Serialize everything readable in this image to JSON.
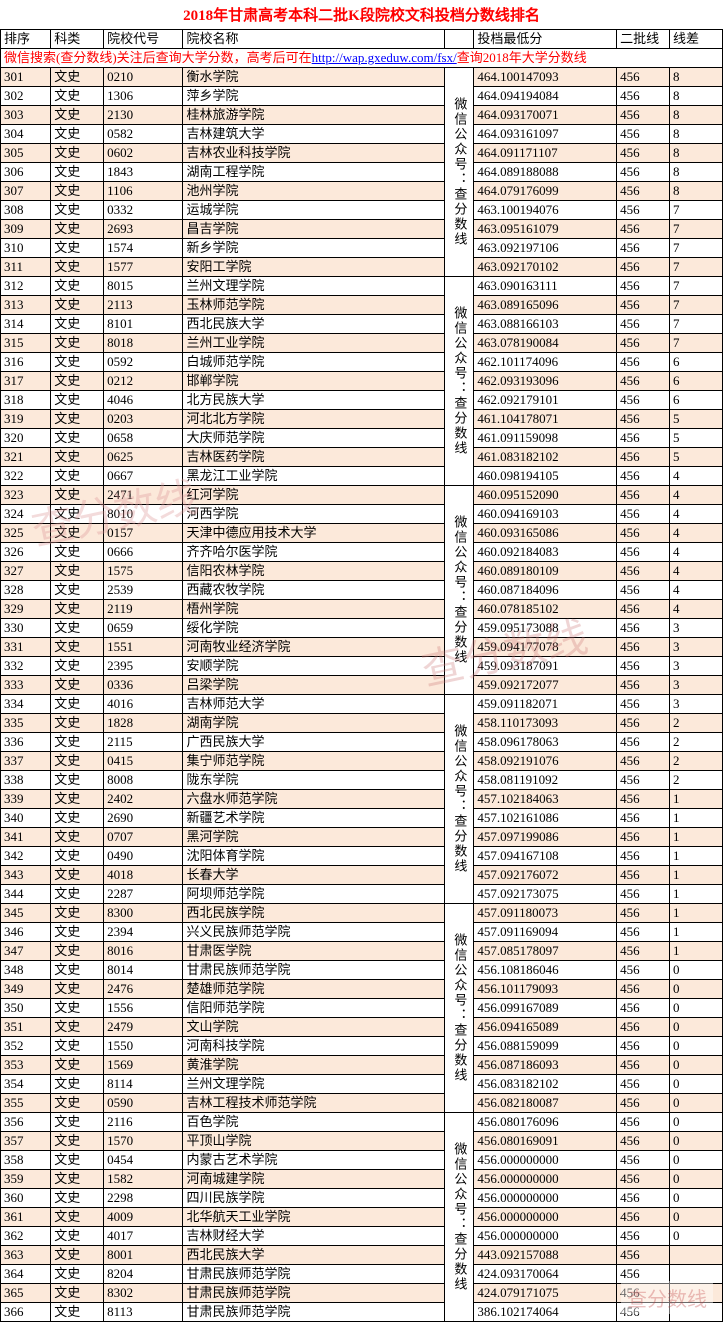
{
  "title": "2018年甘肃高考本科二批K段院校文科投档分数线排名",
  "banner_pre": "微信搜索(查分数线)关注后查询大学分数，高考后可在",
  "banner_url": "http://wap.gxeduw.com/fsx/",
  "banner_post": "查询2018年大学分数线",
  "headers": [
    "排序",
    "科类",
    "院校代号",
    "院校名称",
    "",
    "投档最低分",
    "二批线",
    "线差"
  ],
  "vtext": "微信公众号：查分数线",
  "watermark": "查分数线",
  "colors": {
    "odd_bg": "#fce9da",
    "title": "#ff0000",
    "link": "#0000ff",
    "border": "#000000"
  },
  "rows": [
    [
      "301",
      "文史",
      "0210",
      "衡水学院",
      "464.100147093",
      "456",
      "8"
    ],
    [
      "302",
      "文史",
      "1306",
      "萍乡学院",
      "464.094194084",
      "456",
      "8"
    ],
    [
      "303",
      "文史",
      "2130",
      "桂林旅游学院",
      "464.093170071",
      "456",
      "8"
    ],
    [
      "304",
      "文史",
      "0582",
      "吉林建筑大学",
      "464.093161097",
      "456",
      "8"
    ],
    [
      "305",
      "文史",
      "0602",
      "吉林农业科技学院",
      "464.091171107",
      "456",
      "8"
    ],
    [
      "306",
      "文史",
      "1843",
      "湖南工程学院",
      "464.089188088",
      "456",
      "8"
    ],
    [
      "307",
      "文史",
      "1106",
      "池州学院",
      "464.079176099",
      "456",
      "8"
    ],
    [
      "308",
      "文史",
      "0332",
      "运城学院",
      "463.100194076",
      "456",
      "7"
    ],
    [
      "309",
      "文史",
      "2693",
      "昌吉学院",
      "463.095161079",
      "456",
      "7"
    ],
    [
      "310",
      "文史",
      "1574",
      "新乡学院",
      "463.092197106",
      "456",
      "7"
    ],
    [
      "311",
      "文史",
      "1577",
      "安阳工学院",
      "463.092170102",
      "456",
      "7"
    ],
    [
      "312",
      "文史",
      "8015",
      "兰州文理学院",
      "463.090163111",
      "456",
      "7"
    ],
    [
      "313",
      "文史",
      "2113",
      "玉林师范学院",
      "463.089165096",
      "456",
      "7"
    ],
    [
      "314",
      "文史",
      "8101",
      "西北民族大学",
      "463.088166103",
      "456",
      "7"
    ],
    [
      "315",
      "文史",
      "8018",
      "兰州工业学院",
      "463.078190084",
      "456",
      "7"
    ],
    [
      "316",
      "文史",
      "0592",
      "白城师范学院",
      "462.101174096",
      "456",
      "6"
    ],
    [
      "317",
      "文史",
      "0212",
      "邯郸学院",
      "462.093193096",
      "456",
      "6"
    ],
    [
      "318",
      "文史",
      "4046",
      "北方民族大学",
      "462.092179101",
      "456",
      "6"
    ],
    [
      "319",
      "文史",
      "0203",
      "河北北方学院",
      "461.104178071",
      "456",
      "5"
    ],
    [
      "320",
      "文史",
      "0658",
      "大庆师范学院",
      "461.091159098",
      "456",
      "5"
    ],
    [
      "321",
      "文史",
      "0625",
      "吉林医药学院",
      "461.083182102",
      "456",
      "5"
    ],
    [
      "322",
      "文史",
      "0667",
      "黑龙江工业学院",
      "460.098194105",
      "456",
      "4"
    ],
    [
      "323",
      "文史",
      "2471",
      "红河学院",
      "460.095152090",
      "456",
      "4"
    ],
    [
      "324",
      "文史",
      "8010",
      "河西学院",
      "460.094169103",
      "456",
      "4"
    ],
    [
      "325",
      "文史",
      "0157",
      "天津中德应用技术大学",
      "460.093165086",
      "456",
      "4"
    ],
    [
      "326",
      "文史",
      "0666",
      "齐齐哈尔医学院",
      "460.092184083",
      "456",
      "4"
    ],
    [
      "327",
      "文史",
      "1575",
      "信阳农林学院",
      "460.089180109",
      "456",
      "4"
    ],
    [
      "328",
      "文史",
      "2539",
      "西藏农牧学院",
      "460.087184096",
      "456",
      "4"
    ],
    [
      "329",
      "文史",
      "2119",
      "梧州学院",
      "460.078185102",
      "456",
      "4"
    ],
    [
      "330",
      "文史",
      "0659",
      "绥化学院",
      "459.095173088",
      "456",
      "3"
    ],
    [
      "331",
      "文史",
      "1551",
      "河南牧业经济学院",
      "459.094177078",
      "456",
      "3"
    ],
    [
      "332",
      "文史",
      "2395",
      "安顺学院",
      "459.093187091",
      "456",
      "3"
    ],
    [
      "333",
      "文史",
      "0336",
      "吕梁学院",
      "459.092172077",
      "456",
      "3"
    ],
    [
      "334",
      "文史",
      "4016",
      "吉林师范大学",
      "459.091182071",
      "456",
      "3"
    ],
    [
      "335",
      "文史",
      "1828",
      "湖南学院",
      "458.110173093",
      "456",
      "2"
    ],
    [
      "336",
      "文史",
      "2115",
      "广西民族大学",
      "458.096178063",
      "456",
      "2"
    ],
    [
      "337",
      "文史",
      "0415",
      "集宁师范学院",
      "458.092191076",
      "456",
      "2"
    ],
    [
      "338",
      "文史",
      "8008",
      "陇东学院",
      "458.081191092",
      "456",
      "2"
    ],
    [
      "339",
      "文史",
      "2402",
      "六盘水师范学院",
      "457.102184063",
      "456",
      "1"
    ],
    [
      "340",
      "文史",
      "2690",
      "新疆艺术学院",
      "457.102161086",
      "456",
      "1"
    ],
    [
      "341",
      "文史",
      "0707",
      "黑河学院",
      "457.097199086",
      "456",
      "1"
    ],
    [
      "342",
      "文史",
      "0490",
      "沈阳体育学院",
      "457.094167108",
      "456",
      "1"
    ],
    [
      "343",
      "文史",
      "4018",
      "长春大学",
      "457.092176072",
      "456",
      "1"
    ],
    [
      "344",
      "文史",
      "2287",
      "阿坝师范学院",
      "457.092173075",
      "456",
      "1"
    ],
    [
      "345",
      "文史",
      "8300",
      "西北民族学院",
      "457.091180073",
      "456",
      "1"
    ],
    [
      "346",
      "文史",
      "2394",
      "兴义民族师范学院",
      "457.091169094",
      "456",
      "1"
    ],
    [
      "347",
      "文史",
      "8016",
      "甘肃医学院",
      "457.085178097",
      "456",
      "1"
    ],
    [
      "348",
      "文史",
      "8014",
      "甘肃民族师范学院",
      "456.108186046",
      "456",
      "0"
    ],
    [
      "349",
      "文史",
      "2476",
      "楚雄师范学院",
      "456.101179093",
      "456",
      "0"
    ],
    [
      "350",
      "文史",
      "1556",
      "信阳师范学院",
      "456.099167089",
      "456",
      "0"
    ],
    [
      "351",
      "文史",
      "2479",
      "文山学院",
      "456.094165089",
      "456",
      "0"
    ],
    [
      "352",
      "文史",
      "1550",
      "河南科技学院",
      "456.088159099",
      "456",
      "0"
    ],
    [
      "353",
      "文史",
      "1569",
      "黄淮学院",
      "456.087186093",
      "456",
      "0"
    ],
    [
      "354",
      "文史",
      "8114",
      "兰州文理学院",
      "456.083182102",
      "456",
      "0"
    ],
    [
      "355",
      "文史",
      "0590",
      "吉林工程技术师范学院",
      "456.082180087",
      "456",
      "0"
    ],
    [
      "356",
      "文史",
      "2116",
      "百色学院",
      "456.080176096",
      "456",
      "0"
    ],
    [
      "357",
      "文史",
      "1570",
      "平顶山学院",
      "456.080169091",
      "456",
      "0"
    ],
    [
      "358",
      "文史",
      "0454",
      "内蒙古艺术学院",
      "456.000000000",
      "456",
      "0"
    ],
    [
      "359",
      "文史",
      "1582",
      "河南城建学院",
      "456.000000000",
      "456",
      "0"
    ],
    [
      "360",
      "文史",
      "2298",
      "四川民族学院",
      "456.000000000",
      "456",
      "0"
    ],
    [
      "361",
      "文史",
      "4009",
      "北华航天工业学院",
      "456.000000000",
      "456",
      "0"
    ],
    [
      "362",
      "文史",
      "4017",
      "吉林财经大学",
      "456.000000000",
      "456",
      "0"
    ],
    [
      "363",
      "文史",
      "8001",
      "西北民族大学",
      "443.092157088",
      "456",
      ""
    ],
    [
      "364",
      "文史",
      "8204",
      "甘肃民族师范学院",
      "424.093170064",
      "456",
      ""
    ],
    [
      "365",
      "文史",
      "8302",
      "甘肃民族师范学院",
      "424.079171075",
      "456",
      ""
    ],
    [
      "366",
      "文史",
      "8113",
      "甘肃民族师范学院",
      "386.102174064",
      "456",
      ""
    ]
  ]
}
